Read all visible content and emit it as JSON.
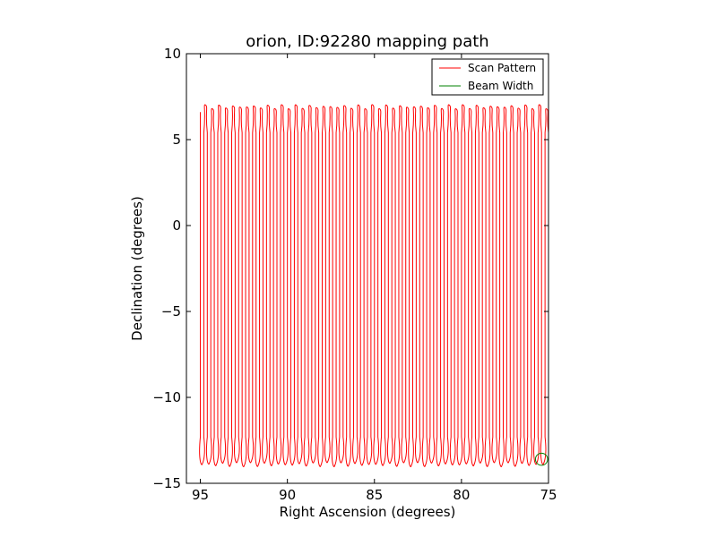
{
  "chart_data": {
    "type": "line",
    "title": "orion, ID:92280 mapping path",
    "xlabel": "Right Ascension (degrees)",
    "ylabel": "Declination (degrees)",
    "xlim": [
      95.8,
      75.0
    ],
    "ylim": [
      -15,
      10
    ],
    "x_inverted": true,
    "xticks": [
      95,
      90,
      85,
      80,
      75
    ],
    "yticks": [
      10,
      5,
      0,
      -5,
      -10,
      -15
    ],
    "grid": false,
    "legend_position": "top-right",
    "series": [
      {
        "name": "Scan Pattern",
        "color": "#ff0000",
        "pattern": "boustrophedon",
        "ra_start": 95.0,
        "ra_end": 75.0,
        "scan_step_deg": 0.2,
        "dec_bottom": -13.9,
        "dec_top": 6.9
      },
      {
        "name": "Beam Width",
        "color": "#008000",
        "shape": "circle",
        "center_ra": 75.4,
        "center_dec": -13.6,
        "radius_deg": 0.35
      }
    ]
  }
}
